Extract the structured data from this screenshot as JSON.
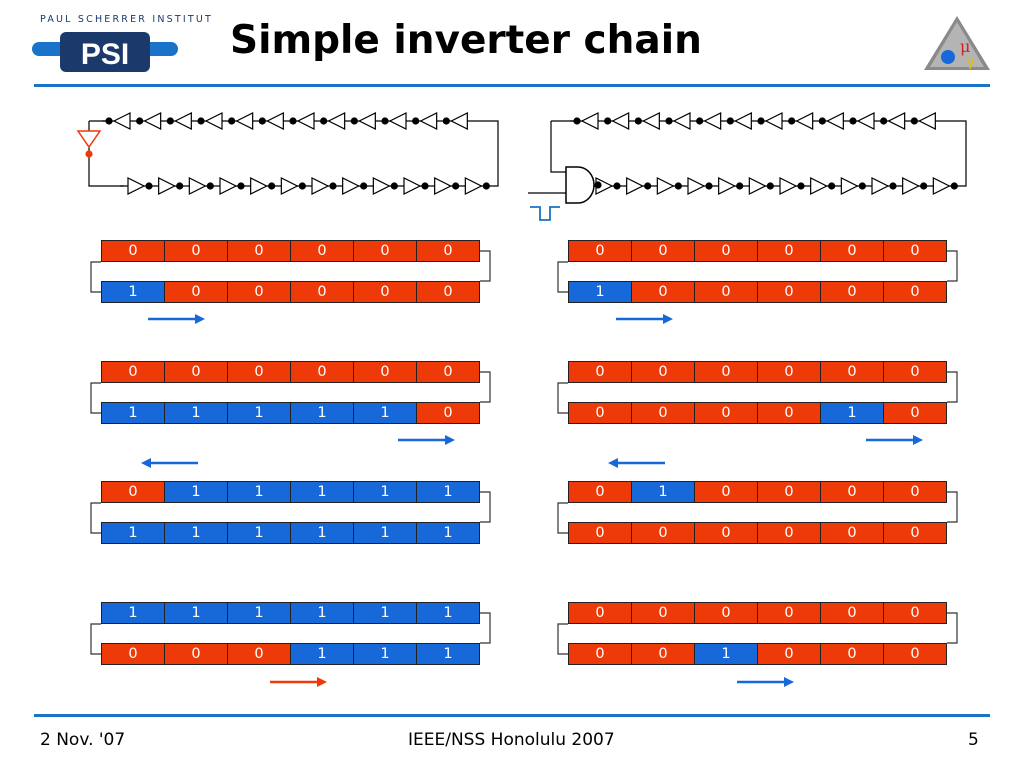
{
  "header": {
    "title": "Simple inverter chain",
    "logo_text": "PAUL SCHERRER INSTITUT",
    "logo_mark": "PSI"
  },
  "footer": {
    "left": "2 Nov. '07",
    "center": "IEEE/NSS Honolulu 2007",
    "right": "5"
  },
  "colors": {
    "zero": "#ee3a09",
    "one": "#1768d9",
    "rule": "#1a73c9",
    "red_arrow": "#ee3a09"
  },
  "left_column": [
    {
      "top": [
        "0",
        "0",
        "0",
        "0",
        "0",
        "0"
      ],
      "bottom": [
        "1",
        "0",
        "0",
        "0",
        "0",
        "0"
      ],
      "arrow": "right",
      "arrow_color": "blue"
    },
    {
      "top": [
        "0",
        "0",
        "0",
        "0",
        "0",
        "0"
      ],
      "bottom": [
        "1",
        "1",
        "1",
        "1",
        "1",
        "0"
      ],
      "arrow": "right",
      "arrow_color": "blue",
      "arrow2": "left"
    },
    {
      "top": [
        "0",
        "1",
        "1",
        "1",
        "1",
        "1"
      ],
      "bottom": [
        "1",
        "1",
        "1",
        "1",
        "1",
        "1"
      ]
    },
    {
      "top": [
        "1",
        "1",
        "1",
        "1",
        "1",
        "1"
      ],
      "bottom": [
        "0",
        "0",
        "0",
        "1",
        "1",
        "1"
      ],
      "arrow": "right",
      "arrow_color": "red"
    }
  ],
  "right_column": [
    {
      "top": [
        "0",
        "0",
        "0",
        "0",
        "0",
        "0"
      ],
      "bottom": [
        "1",
        "0",
        "0",
        "0",
        "0",
        "0"
      ],
      "arrow": "right",
      "arrow_color": "blue"
    },
    {
      "top": [
        "0",
        "0",
        "0",
        "0",
        "0",
        "0"
      ],
      "bottom": [
        "0",
        "0",
        "0",
        "0",
        "1",
        "0"
      ],
      "arrow": "right",
      "arrow_color": "blue",
      "arrow2": "left"
    },
    {
      "top": [
        "0",
        "1",
        "0",
        "0",
        "0",
        "0"
      ],
      "bottom": [
        "0",
        "0",
        "0",
        "0",
        "0",
        "0"
      ]
    },
    {
      "top": [
        "0",
        "0",
        "0",
        "0",
        "0",
        "0"
      ],
      "bottom": [
        "0",
        "0",
        "1",
        "0",
        "0",
        "0"
      ],
      "arrow": "right",
      "arrow_color": "blue"
    }
  ]
}
